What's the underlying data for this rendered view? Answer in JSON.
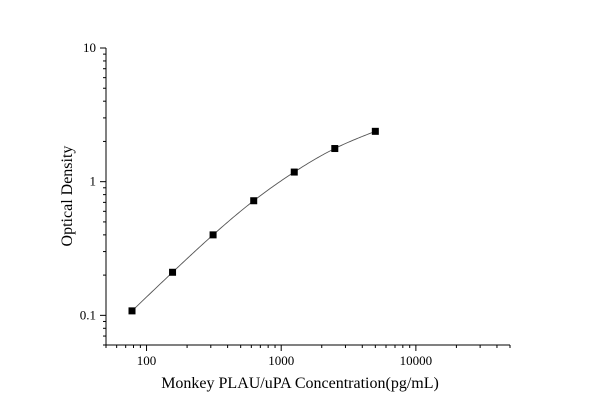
{
  "chart_data": {
    "type": "scatter",
    "title": "",
    "xlabel": "Monkey PLAU/uPA  Concentration(pg/mL)",
    "ylabel": "Optical Density",
    "x_scale": "log",
    "y_scale": "log",
    "xlim": [
      50,
      50000
    ],
    "ylim": [
      0.06,
      10
    ],
    "x_ticks": [
      100,
      1000,
      10000
    ],
    "x_tick_labels": [
      "100",
      "1000",
      "10000"
    ],
    "y_ticks": [
      0.1,
      1,
      10
    ],
    "y_tick_labels": [
      "0.1",
      "1",
      "10"
    ],
    "grid": false,
    "legend": "none",
    "series": [
      {
        "x": [
          78,
          156,
          312,
          625,
          1250,
          2500,
          5000
        ],
        "y": [
          0.108,
          0.21,
          0.4,
          0.72,
          1.18,
          1.77,
          2.38
        ],
        "marker": "square",
        "fit_curve": true
      }
    ],
    "colors": {
      "marker": "#000000",
      "curve": "#555555",
      "axes": "#000000"
    }
  }
}
